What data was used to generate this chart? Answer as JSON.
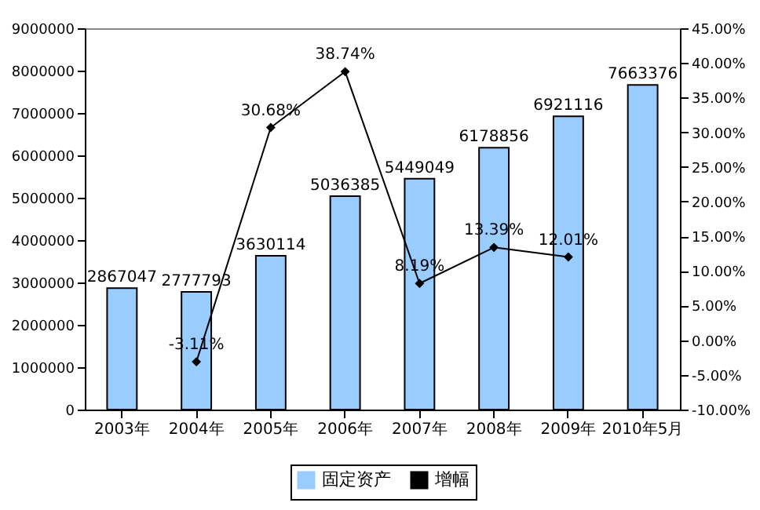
{
  "chart_data": {
    "type": "bar",
    "categories": [
      "2003年",
      "2004年",
      "2005年",
      "2006年",
      "2007年",
      "2008年",
      "2009年",
      "2010年5月"
    ],
    "series": [
      {
        "name": "固定资产",
        "color": "#99ccff",
        "values": [
          2867047,
          2777793,
          3630114,
          5036385,
          5449049,
          6178856,
          6921116,
          7663376
        ],
        "value_labels": [
          "2867047",
          "2777793",
          "3630114",
          "5036385",
          "5449049",
          "6178856",
          "6921116",
          "7663376"
        ]
      },
      {
        "name": "增幅",
        "type": "line",
        "axis": "y2",
        "color": "#000000",
        "values": [
          null,
          -3.11,
          30.68,
          38.74,
          8.19,
          13.39,
          12.01,
          null
        ],
        "value_labels": [
          null,
          "-3.11%",
          "30.68%",
          "38.74%",
          "8.19%",
          "13.39%",
          "12.01%",
          null
        ]
      }
    ],
    "ylim": [
      0,
      9000000
    ],
    "yticks": [
      0,
      1000000,
      2000000,
      3000000,
      4000000,
      5000000,
      6000000,
      7000000,
      8000000,
      9000000
    ],
    "y2lim": [
      -10,
      45
    ],
    "y2ticks": [
      {
        "value": -10,
        "label": "-10.00%"
      },
      {
        "value": -5,
        "label": "-5.00%"
      },
      {
        "value": 0,
        "label": "0.00%"
      },
      {
        "value": 5,
        "label": "5.00%"
      },
      {
        "value": 10,
        "label": "10.00%"
      },
      {
        "value": 15,
        "label": "15.00%"
      },
      {
        "value": 20,
        "label": "20.00%"
      },
      {
        "value": 25,
        "label": "25.00%"
      },
      {
        "value": 30,
        "label": "30.00%"
      },
      {
        "value": 35,
        "label": "35.00%"
      },
      {
        "value": 40,
        "label": "40.00%"
      },
      {
        "value": 45,
        "label": "45.00%"
      }
    ],
    "legend": "bottom",
    "marker": "diamond",
    "line_style": "solid"
  }
}
